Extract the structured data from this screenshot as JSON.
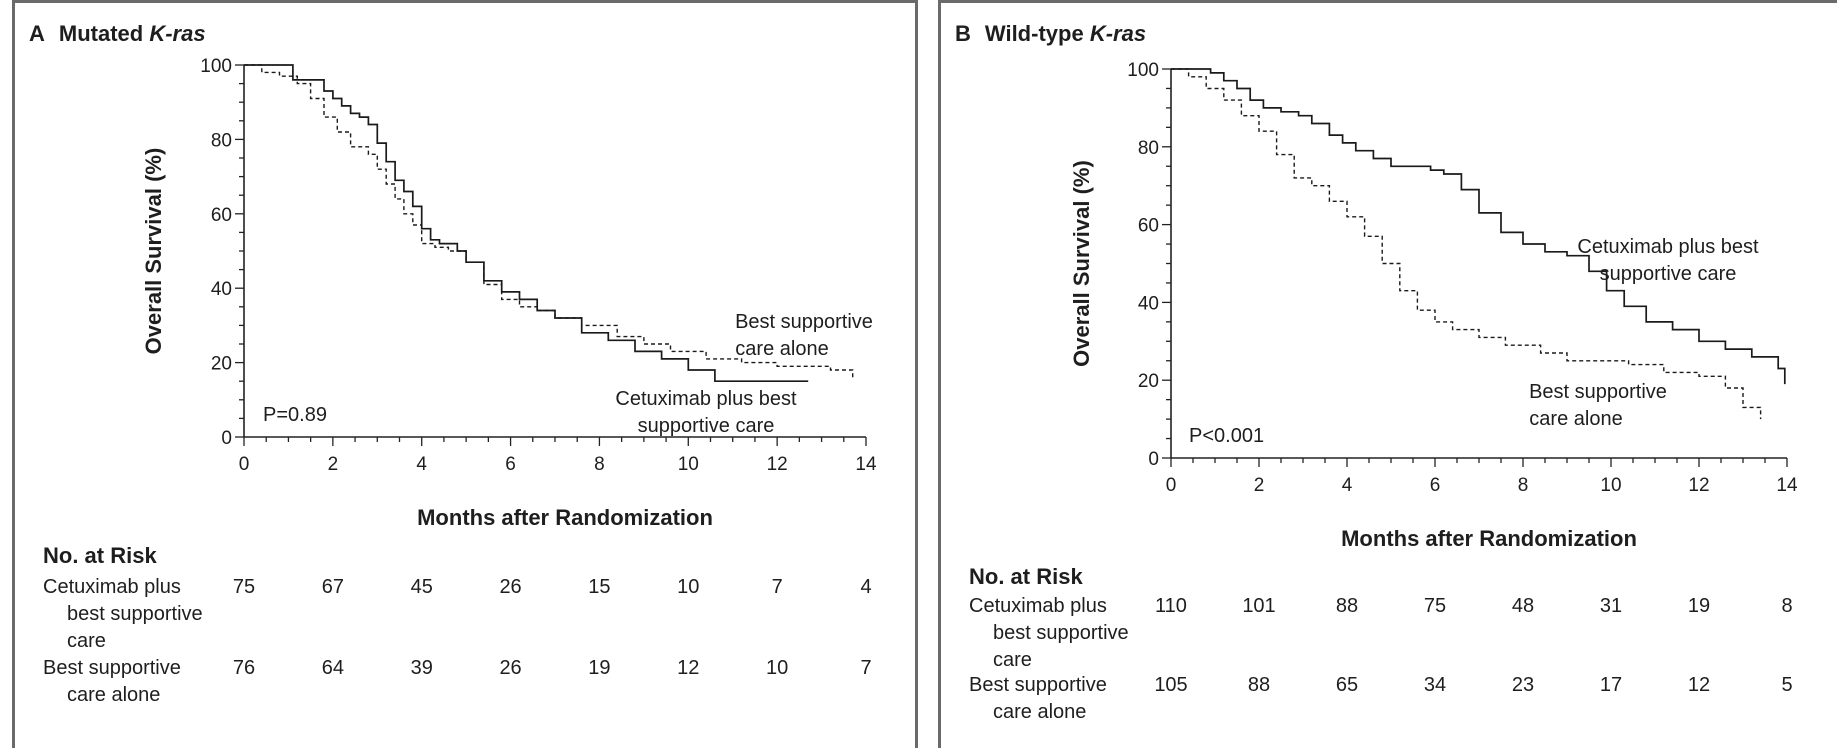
{
  "panels": [
    {
      "letter": "A",
      "title_plain": "Mutated ",
      "title_italic": "K-ras",
      "ylabel": "Overall Survival (%)",
      "xlabel": "Months after Randomization",
      "p_value": "P=0.89",
      "cetux_label": [
        "Cetuximab plus best",
        "supportive care"
      ],
      "bsc_label": [
        "Best supportive",
        "care alone"
      ],
      "risk_title": "No. at Risk",
      "risk_rows": [
        {
          "label": [
            "Cetuximab plus",
            "best supportive",
            "care"
          ],
          "values": [
            "75",
            "67",
            "45",
            "26",
            "15",
            "10",
            "7",
            "4"
          ]
        },
        {
          "label": [
            "Best supportive",
            "care alone"
          ],
          "values": [
            "76",
            "64",
            "39",
            "26",
            "19",
            "12",
            "10",
            "7"
          ]
        }
      ]
    },
    {
      "letter": "B",
      "title_plain": "Wild-type ",
      "title_italic": "K-ras",
      "ylabel": "Overall Survival (%)",
      "xlabel": "Months after Randomization",
      "p_value": "P<0.001",
      "cetux_label": [
        "Cetuximab plus best",
        "supportive care"
      ],
      "bsc_label": [
        "Best supportive",
        "care alone"
      ],
      "risk_title": "No. at Risk",
      "risk_rows": [
        {
          "label": [
            "Cetuximab plus",
            "best supportive",
            "care"
          ],
          "values": [
            "110",
            "101",
            "88",
            "75",
            "48",
            "31",
            "19",
            "8"
          ]
        },
        {
          "label": [
            "Best supportive",
            "care alone"
          ],
          "values": [
            "105",
            "88",
            "65",
            "34",
            "23",
            "17",
            "12",
            "5"
          ]
        }
      ]
    }
  ],
  "chart_data": [
    {
      "type": "line",
      "title": "Mutated K-ras",
      "xlabel": "Months after Randomization",
      "ylabel": "Overall Survival (%)",
      "xlim": [
        0,
        14
      ],
      "ylim": [
        0,
        100
      ],
      "xticks": [
        0,
        2,
        4,
        6,
        8,
        10,
        12,
        14
      ],
      "yticks": [
        0,
        20,
        40,
        60,
        80,
        100
      ],
      "series": [
        {
          "name": "Cetuximab plus best supportive care",
          "style": "solid",
          "x": [
            0,
            0.9,
            1.1,
            1.6,
            1.8,
            2.0,
            2.2,
            2.4,
            2.6,
            2.8,
            3.0,
            3.2,
            3.4,
            3.6,
            3.8,
            4.0,
            4.2,
            4.4,
            4.6,
            4.8,
            5.0,
            5.4,
            5.8,
            6.2,
            6.6,
            7.0,
            7.6,
            8.2,
            8.8,
            9.4,
            10.0,
            10.6,
            11.0,
            12.0,
            12.7
          ],
          "y": [
            100,
            100,
            96,
            96,
            93,
            91,
            89,
            87,
            86,
            84,
            79,
            74,
            69,
            66,
            62,
            56,
            53,
            52,
            52,
            50,
            47,
            42,
            39,
            37,
            34,
            32,
            28,
            26,
            23,
            21,
            18,
            15,
            15,
            15,
            15
          ]
        },
        {
          "name": "Best supportive care alone",
          "style": "dashed",
          "x": [
            0,
            0.4,
            0.8,
            1.2,
            1.5,
            1.8,
            2.1,
            2.4,
            2.8,
            3.0,
            3.2,
            3.4,
            3.6,
            3.8,
            4.0,
            4.3,
            4.6,
            5.0,
            5.4,
            5.8,
            6.2,
            6.6,
            7.0,
            7.6,
            8.4,
            9.0,
            9.6,
            10.4,
            11.2,
            12.0,
            12.8,
            13.2,
            13.7
          ],
          "y": [
            100,
            98,
            97,
            95,
            91,
            86,
            82,
            78,
            76,
            72,
            68,
            64,
            60,
            57,
            52,
            51,
            50,
            47,
            41,
            37,
            35,
            34,
            32,
            30,
            27,
            25,
            23,
            21,
            20,
            19,
            19,
            18,
            16
          ]
        }
      ],
      "annotations": [
        "Best supportive care alone",
        "Cetuximab plus best supportive care",
        "P=0.89"
      ]
    },
    {
      "type": "line",
      "title": "Wild-type K-ras",
      "xlabel": "Months after Randomization",
      "ylabel": "Overall Survival (%)",
      "xlim": [
        0,
        14
      ],
      "ylim": [
        0,
        100
      ],
      "xticks": [
        0,
        2,
        4,
        6,
        8,
        10,
        12,
        14
      ],
      "yticks": [
        0,
        20,
        40,
        60,
        80,
        100
      ],
      "series": [
        {
          "name": "Cetuximab plus best supportive care",
          "style": "solid",
          "x": [
            0,
            0.6,
            0.9,
            1.2,
            1.5,
            1.8,
            2.1,
            2.5,
            2.9,
            3.2,
            3.6,
            3.9,
            4.2,
            4.6,
            5.0,
            5.4,
            5.9,
            6.2,
            6.6,
            7.0,
            7.5,
            8.0,
            8.5,
            9.0,
            9.5,
            9.9,
            10.3,
            10.8,
            11.4,
            12.0,
            12.6,
            13.2,
            13.8,
            13.95
          ],
          "y": [
            100,
            100,
            99,
            97,
            95,
            92,
            90,
            89,
            88,
            86,
            83,
            81,
            79,
            77,
            75,
            75,
            74,
            73,
            69,
            63,
            58,
            55,
            53,
            52,
            48,
            43,
            39,
            35,
            33,
            30,
            28,
            26,
            23,
            19
          ]
        },
        {
          "name": "Best supportive care alone",
          "style": "dashed",
          "x": [
            0,
            0.4,
            0.8,
            1.2,
            1.6,
            2.0,
            2.4,
            2.8,
            3.2,
            3.6,
            4.0,
            4.4,
            4.8,
            5.2,
            5.6,
            6.0,
            6.4,
            7.0,
            7.6,
            8.4,
            9.0,
            9.6,
            10.4,
            11.2,
            12.0,
            12.6,
            13.0,
            13.4
          ],
          "y": [
            100,
            98,
            95,
            92,
            88,
            84,
            78,
            72,
            70,
            66,
            62,
            57,
            50,
            43,
            38,
            35,
            33,
            31,
            29,
            27,
            25,
            25,
            24,
            22,
            21,
            18,
            13,
            10
          ]
        }
      ],
      "annotations": [
        "Cetuximab plus best supportive care",
        "Best supportive care alone",
        "P<0.001"
      ]
    }
  ]
}
